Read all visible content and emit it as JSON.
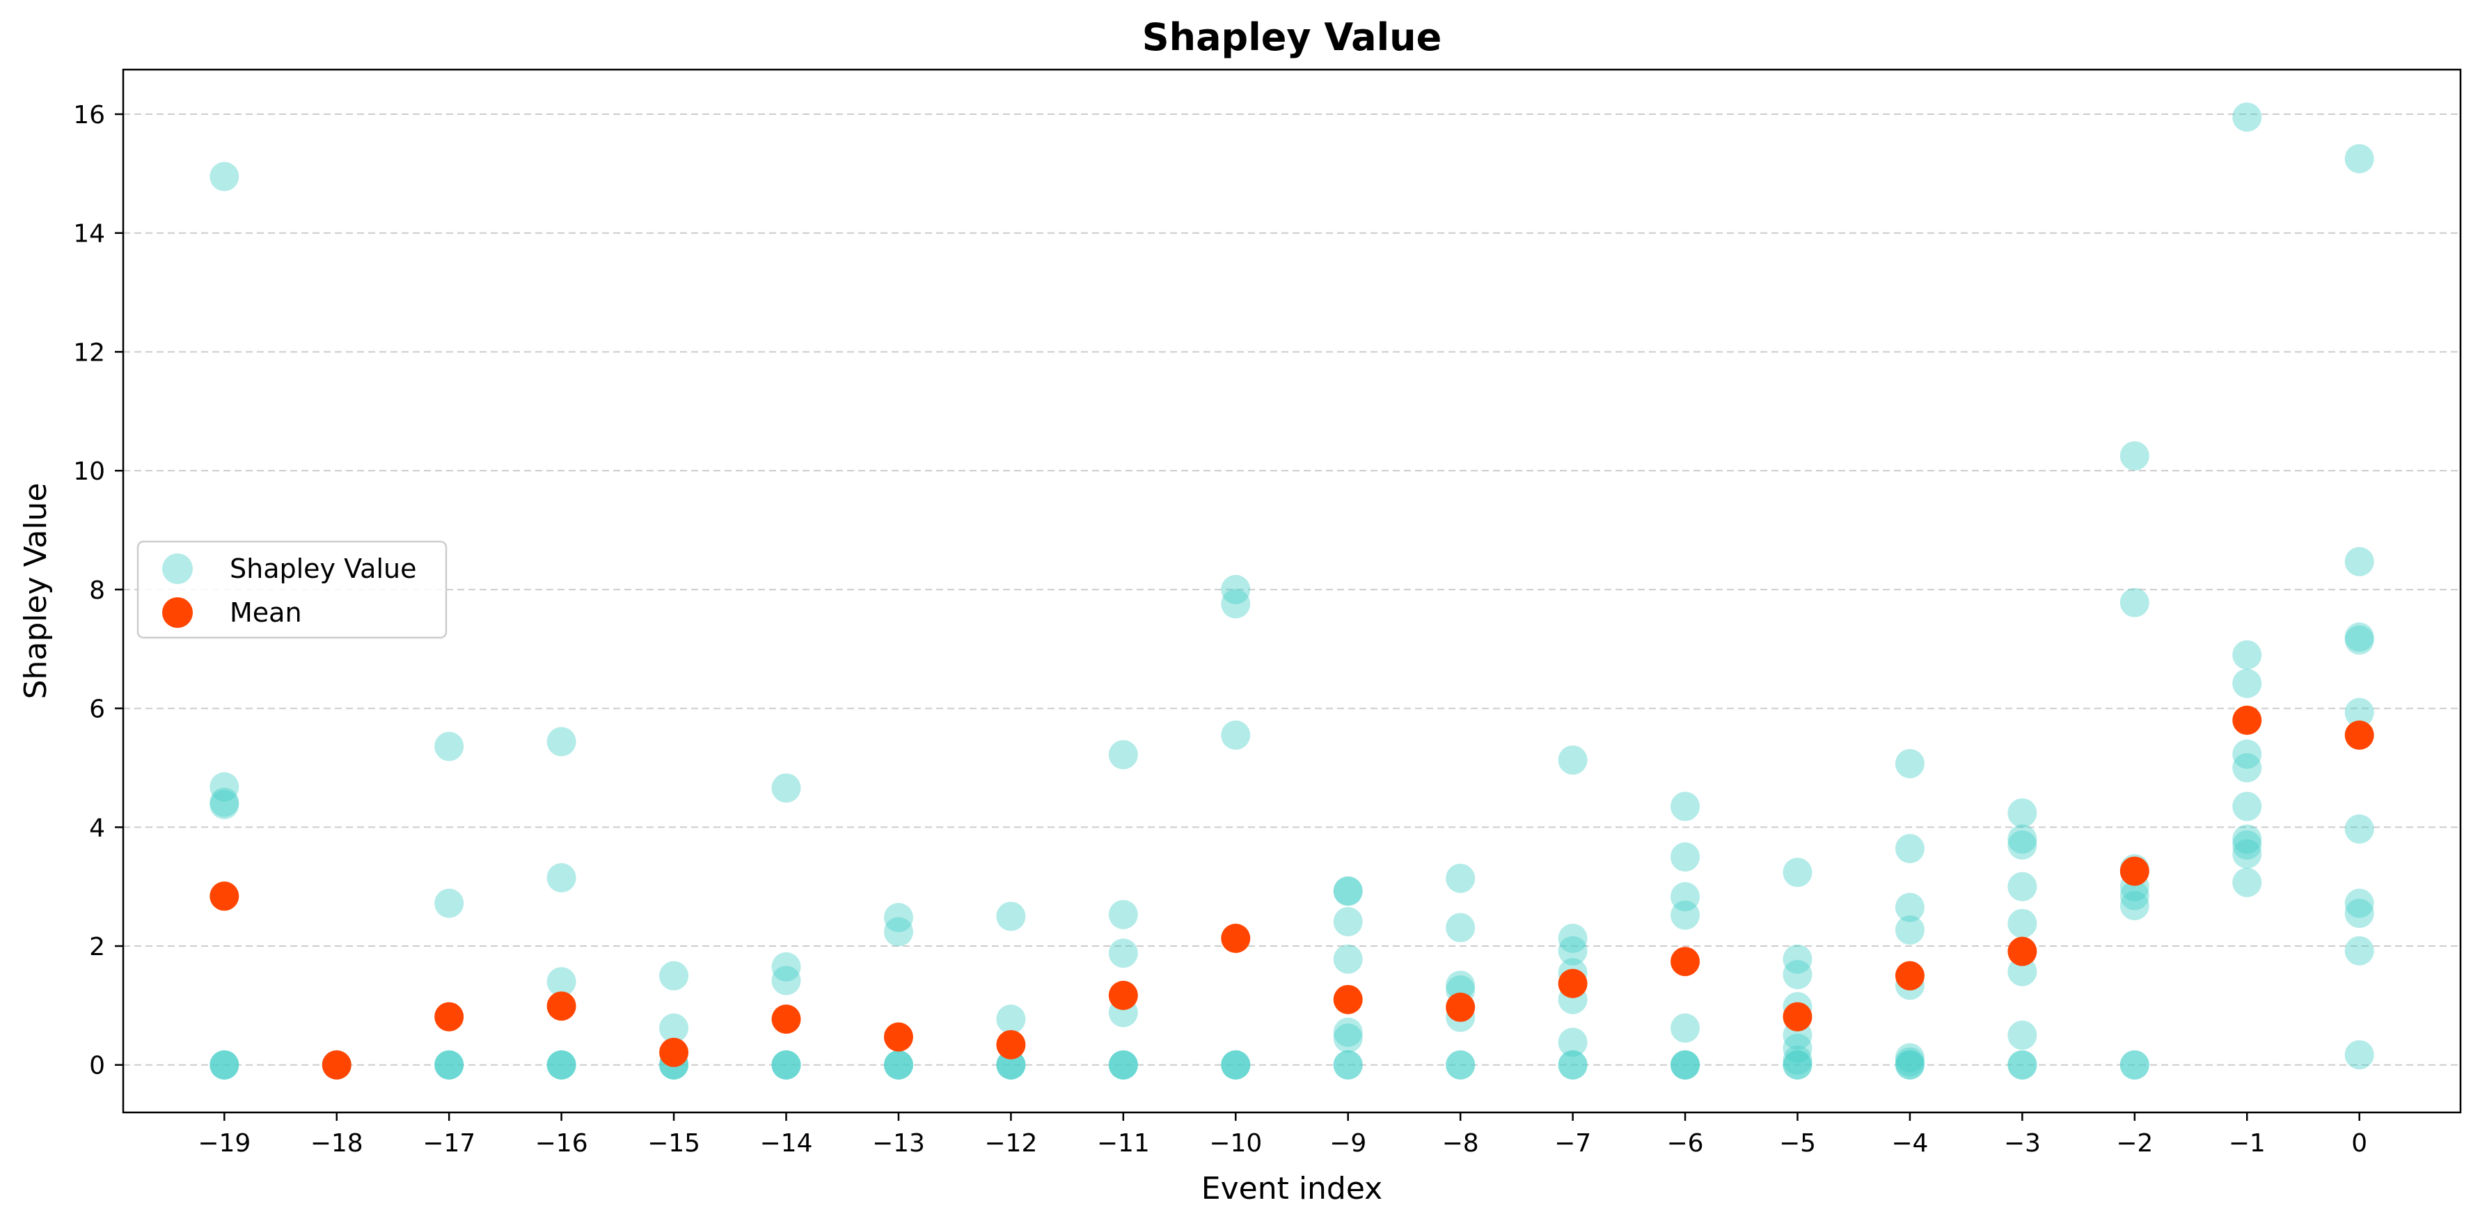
{
  "chart_data": {
    "type": "scatter",
    "title": "Shapley Value",
    "xlabel": "Event index",
    "ylabel": "Shapley Value",
    "xlim": [
      -19.9,
      0.9
    ],
    "ylim": [
      -0.8,
      16.75
    ],
    "xticks": [
      -19,
      -18,
      -17,
      -16,
      -15,
      -14,
      -13,
      -12,
      -11,
      -10,
      -9,
      -8,
      -7,
      -6,
      -5,
      -4,
      -3,
      -2,
      -1,
      0
    ],
    "yticks": [
      0,
      2,
      4,
      6,
      8,
      10,
      12,
      14,
      16
    ],
    "grid": "y-dashed",
    "legend": {
      "placement": "center-left"
    },
    "series": [
      {
        "name": "Shapley Value",
        "color": "#48cfc8",
        "opacity": 0.42,
        "points": [
          [
            -19,
            14.95
          ],
          [
            -19,
            4.68
          ],
          [
            -19,
            4.42
          ],
          [
            -19,
            4.38
          ],
          [
            -19,
            0
          ],
          [
            -19,
            0
          ],
          [
            -19,
            0
          ],
          [
            -18,
            0
          ],
          [
            -18,
            0
          ],
          [
            -18,
            0
          ],
          [
            -17,
            5.36
          ],
          [
            -17,
            2.72
          ],
          [
            -17,
            0
          ],
          [
            -17,
            0
          ],
          [
            -17,
            0
          ],
          [
            -16,
            5.44
          ],
          [
            -16,
            3.15
          ],
          [
            -16,
            1.4
          ],
          [
            -16,
            0
          ],
          [
            -16,
            0
          ],
          [
            -16,
            0
          ],
          [
            -15,
            1.5
          ],
          [
            -15,
            0.62
          ],
          [
            -15,
            0
          ],
          [
            -15,
            0
          ],
          [
            -15,
            0
          ],
          [
            -14,
            4.66
          ],
          [
            -14,
            1.65
          ],
          [
            -14,
            1.42
          ],
          [
            -14,
            0
          ],
          [
            -14,
            0
          ],
          [
            -14,
            0
          ],
          [
            -13,
            2.48
          ],
          [
            -13,
            2.24
          ],
          [
            -13,
            0
          ],
          [
            -13,
            0
          ],
          [
            -13,
            0
          ],
          [
            -12,
            2.5
          ],
          [
            -12,
            0.77
          ],
          [
            -12,
            0
          ],
          [
            -12,
            0
          ],
          [
            -12,
            0
          ],
          [
            -11,
            5.22
          ],
          [
            -11,
            2.53
          ],
          [
            -11,
            1.88
          ],
          [
            -11,
            0.88
          ],
          [
            -11,
            0
          ],
          [
            -11,
            0
          ],
          [
            -11,
            0
          ],
          [
            -10,
            8.0
          ],
          [
            -10,
            7.76
          ],
          [
            -10,
            5.55
          ],
          [
            -10,
            0
          ],
          [
            -10,
            0
          ],
          [
            -10,
            0
          ],
          [
            -9,
            2.93
          ],
          [
            -9,
            2.92
          ],
          [
            -9,
            2.41
          ],
          [
            -9,
            1.78
          ],
          [
            -9,
            0.55
          ],
          [
            -9,
            0.45
          ],
          [
            -9,
            0
          ],
          [
            -9,
            0
          ],
          [
            -8,
            3.14
          ],
          [
            -8,
            2.31
          ],
          [
            -8,
            1.34
          ],
          [
            -8,
            1.26
          ],
          [
            -8,
            0.8
          ],
          [
            -8,
            0
          ],
          [
            -8,
            0
          ],
          [
            -7,
            5.13
          ],
          [
            -7,
            2.13
          ],
          [
            -7,
            1.92
          ],
          [
            -7,
            1.55
          ],
          [
            -7,
            1.1
          ],
          [
            -7,
            0.38
          ],
          [
            -7,
            0
          ],
          [
            -7,
            0
          ],
          [
            -6,
            4.35
          ],
          [
            -6,
            3.5
          ],
          [
            -6,
            2.83
          ],
          [
            -6,
            2.52
          ],
          [
            -6,
            0.62
          ],
          [
            -6,
            0
          ],
          [
            -6,
            0
          ],
          [
            -6,
            0
          ],
          [
            -5,
            3.24
          ],
          [
            -5,
            1.78
          ],
          [
            -5,
            1.52
          ],
          [
            -5,
            0.98
          ],
          [
            -5,
            0.5
          ],
          [
            -5,
            0.28
          ],
          [
            -5,
            0.08
          ],
          [
            -5,
            0
          ],
          [
            -5,
            0
          ],
          [
            -4,
            5.07
          ],
          [
            -4,
            3.64
          ],
          [
            -4,
            2.65
          ],
          [
            -4,
            2.27
          ],
          [
            -4,
            1.34
          ],
          [
            -4,
            0.12
          ],
          [
            -4,
            0.05
          ],
          [
            -4,
            0
          ],
          [
            -4,
            0
          ],
          [
            -3,
            4.24
          ],
          [
            -3,
            3.8
          ],
          [
            -3,
            3.7
          ],
          [
            -3,
            3.0
          ],
          [
            -3,
            2.38
          ],
          [
            -3,
            1.57
          ],
          [
            -3,
            0.5
          ],
          [
            -3,
            0
          ],
          [
            -3,
            0
          ],
          [
            -2,
            10.25
          ],
          [
            -2,
            7.78
          ],
          [
            -2,
            3.3
          ],
          [
            -2,
            3.0
          ],
          [
            -2,
            2.85
          ],
          [
            -2,
            2.68
          ],
          [
            -2,
            0
          ],
          [
            -2,
            0
          ],
          [
            -1,
            15.95
          ],
          [
            -1,
            6.9
          ],
          [
            -1,
            6.42
          ],
          [
            -1,
            5.23
          ],
          [
            -1,
            5.0
          ],
          [
            -1,
            4.35
          ],
          [
            -1,
            3.8
          ],
          [
            -1,
            3.7
          ],
          [
            -1,
            3.55
          ],
          [
            -1,
            3.07
          ],
          [
            0,
            15.25
          ],
          [
            0,
            8.47
          ],
          [
            0,
            7.2
          ],
          [
            0,
            7.15
          ],
          [
            0,
            5.93
          ],
          [
            0,
            3.97
          ],
          [
            0,
            2.72
          ],
          [
            0,
            2.55
          ],
          [
            0,
            1.92
          ],
          [
            0,
            0.17
          ]
        ]
      },
      {
        "name": "Mean",
        "color": "#ff4500",
        "opacity": 1.0,
        "points": [
          [
            -19,
            2.84
          ],
          [
            -18,
            0
          ],
          [
            -17,
            0.81
          ],
          [
            -16,
            0.99
          ],
          [
            -15,
            0.21
          ],
          [
            -14,
            0.77
          ],
          [
            -13,
            0.47
          ],
          [
            -12,
            0.34
          ],
          [
            -11,
            1.17
          ],
          [
            -10,
            2.13
          ],
          [
            -9,
            1.1
          ],
          [
            -8,
            0.97
          ],
          [
            -7,
            1.37
          ],
          [
            -6,
            1.74
          ],
          [
            -5,
            0.81
          ],
          [
            -4,
            1.5
          ],
          [
            -3,
            1.91
          ],
          [
            -2,
            3.26
          ],
          [
            -1,
            5.8
          ],
          [
            0,
            5.55
          ]
        ]
      }
    ]
  }
}
